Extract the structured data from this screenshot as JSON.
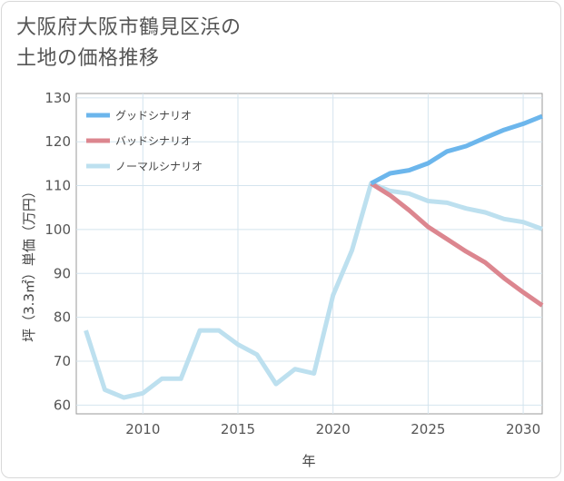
{
  "title": "大阪府大阪市鶴見区浜の\n土地の価格推移",
  "chart_data": {
    "type": "line",
    "title": "大阪府大阪市鶴見区浜の土地の価格推移",
    "xlabel": "年",
    "ylabel": "坪（3.3㎡）単価（万円）",
    "xlim": [
      2006.5,
      2031
    ],
    "ylim": [
      58,
      131
    ],
    "xticks": [
      2010,
      2015,
      2020,
      2025,
      2030
    ],
    "yticks": [
      60,
      70,
      80,
      90,
      100,
      110,
      120,
      130
    ],
    "grid": true,
    "legend_position": "top-left",
    "series": [
      {
        "name": "グッドシナリオ",
        "color": "#6cb6ec",
        "x": [
          2022,
          2023,
          2024,
          2025,
          2026,
          2027,
          2028,
          2029,
          2030,
          2031
        ],
        "y": [
          110.5,
          112.8,
          113.5,
          115.1,
          117.8,
          119.0,
          120.9,
          122.7,
          124.1,
          125.8
        ]
      },
      {
        "name": "バッドシナリオ",
        "color": "#dc868f",
        "x": [
          2022,
          2023,
          2024,
          2025,
          2026,
          2027,
          2028,
          2029,
          2030,
          2031
        ],
        "y": [
          110.5,
          107.8,
          104.4,
          100.6,
          97.8,
          95.0,
          92.5,
          88.9,
          85.7,
          82.7
        ]
      },
      {
        "name": "ノーマルシナリオ",
        "color": "#bde0ef",
        "x": [
          2007,
          2008,
          2009,
          2010,
          2011,
          2012,
          2013,
          2014,
          2015,
          2016,
          2017,
          2018,
          2019,
          2020,
          2021,
          2022,
          2023,
          2024,
          2025,
          2026,
          2027,
          2028,
          2029,
          2030,
          2031
        ],
        "y": [
          77.0,
          63.5,
          61.7,
          62.7,
          66.0,
          66.0,
          77.0,
          77.0,
          73.8,
          71.5,
          64.8,
          68.2,
          67.2,
          85.0,
          95.3,
          110.5,
          108.8,
          108.2,
          106.5,
          106.1,
          104.8,
          103.9,
          102.4,
          101.7,
          100.1
        ]
      }
    ]
  }
}
